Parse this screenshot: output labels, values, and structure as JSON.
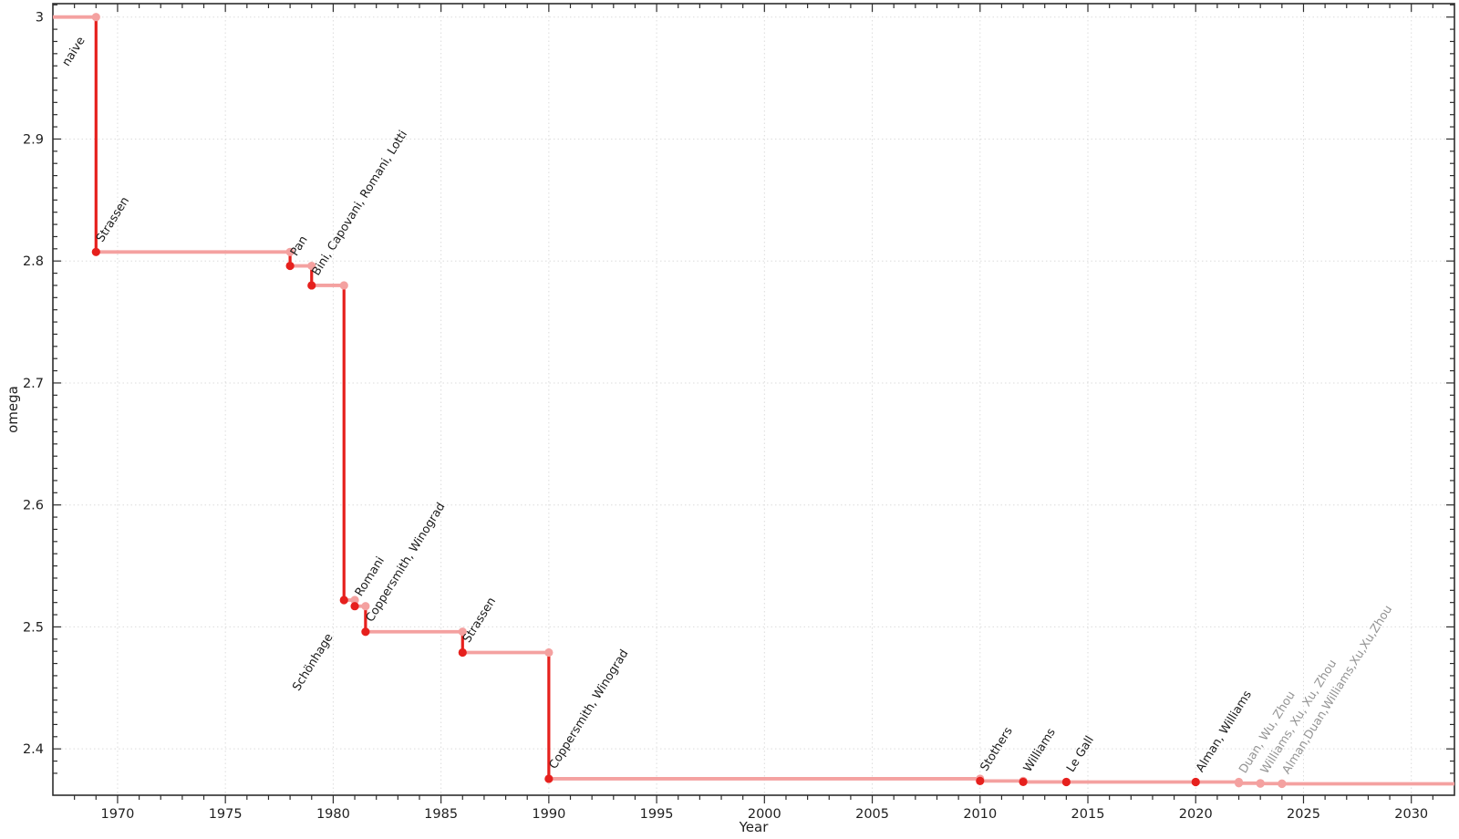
{
  "chart_data": {
    "type": "line",
    "subtype": "step",
    "title": "",
    "xlabel": "Year",
    "ylabel": "omega",
    "xlim": [
      1967,
      2032
    ],
    "ylim": [
      2.362,
      3.011
    ],
    "grid": "dotted-at-major-ticks",
    "legend": "none",
    "x_major_ticks": [
      1970,
      1975,
      1980,
      1985,
      1990,
      1995,
      2000,
      2005,
      2010,
      2015,
      2020,
      2025,
      2030
    ],
    "x_minor_step": 1,
    "y_major_ticks": [
      2.4,
      2.5,
      2.6,
      2.7,
      2.8,
      2.9,
      3
    ],
    "y_major_tick_labels": [
      "2.4",
      "2.5",
      "2.6",
      "2.7",
      "2.8",
      "2.9",
      "3"
    ],
    "y_minor_step": 0.01,
    "start": {
      "omega": 3,
      "label": "naive",
      "label_anchor": "end",
      "label_dx": -12,
      "label_dy": 25
    },
    "events": [
      {
        "year": 1969,
        "omega": 2.8074,
        "label": "Strassen"
      },
      {
        "year": 1978,
        "omega": 2.796,
        "label": "Pan"
      },
      {
        "year": 1979,
        "omega": 2.78,
        "label": "Bini, Capovani, Romani, Lotti"
      },
      {
        "year": 1980.5,
        "omega": 2.522,
        "label": "Schönhage",
        "label_anchor": "end",
        "label_dx": -12,
        "label_dy": 40
      },
      {
        "year": 1981,
        "omega": 2.517,
        "label": "Romani"
      },
      {
        "year": 1981.5,
        "omega": 2.496,
        "label": "Coppersmith, Winograd"
      },
      {
        "year": 1986,
        "omega": 2.479,
        "label": "Strassen"
      },
      {
        "year": 1990,
        "omega": 2.3755,
        "label": "Coppersmith, Winograd"
      },
      {
        "year": 2010,
        "omega": 2.3737,
        "label": "Stothers"
      },
      {
        "year": 2012,
        "omega": 2.3729,
        "label": "Williams"
      },
      {
        "year": 2014,
        "omega": 2.3728639,
        "label": "Le Gall"
      },
      {
        "year": 2020,
        "omega": 2.3728596,
        "label": "Alman, Williams"
      },
      {
        "year": 2022,
        "omega": 2.371866,
        "label": "Duan, Wu, Zhou",
        "recent": true
      },
      {
        "year": 2023,
        "omega": 2.371552,
        "label": "Williams, Xu, Xu, Zhou",
        "recent": true
      },
      {
        "year": 2024,
        "omega": 2.371339,
        "label": "Alman,Duan,Williams,Xu,Xu,Zhou",
        "recent": true
      }
    ],
    "colors": {
      "line_horizontal": "#f4a1a0",
      "line_drop": "#e6201d",
      "marker": "#e6201d",
      "marker_recent": "#f4a1a0",
      "label": "#1a1a1a",
      "label_recent": "#949494",
      "grid": "#dcdcdc",
      "frame": "#2d2d2d",
      "tick_text": "#1f1f1f"
    }
  }
}
